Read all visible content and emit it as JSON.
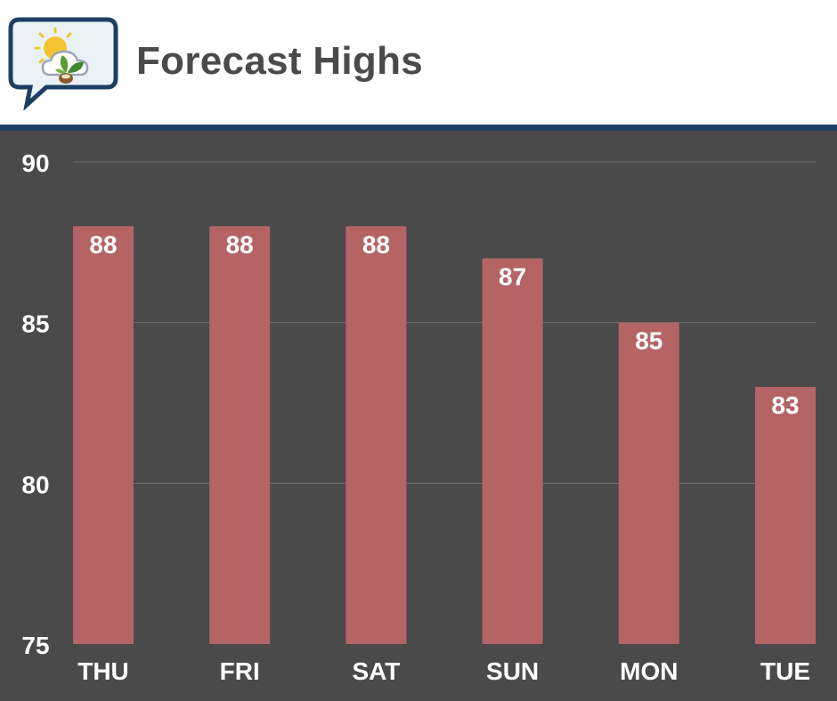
{
  "header": {
    "title": "Forecast Highs",
    "logo_icon": "sun-cloud-leaf-icon"
  },
  "colors": {
    "header_bg": "#ffffff",
    "title_text": "#4a4a4a",
    "rule": "#1c3f62",
    "plot_bg": "#4a4a4a",
    "bar": "#b56466",
    "label_text": "#ffffff",
    "grid": "#6e6e6e"
  },
  "chart_data": {
    "type": "bar",
    "title": "Forecast Highs",
    "categories": [
      "THU",
      "FRI",
      "SAT",
      "SUN",
      "MON",
      "TUE"
    ],
    "values": [
      88,
      88,
      88,
      87,
      85,
      83
    ],
    "data_labels": [
      "88",
      "88",
      "88",
      "87",
      "85",
      "83"
    ],
    "yticks": [
      "75",
      "80",
      "85",
      "90"
    ],
    "ylim": [
      75,
      90
    ],
    "xlabel": "",
    "ylabel": "",
    "grid": true,
    "legend": "none"
  }
}
